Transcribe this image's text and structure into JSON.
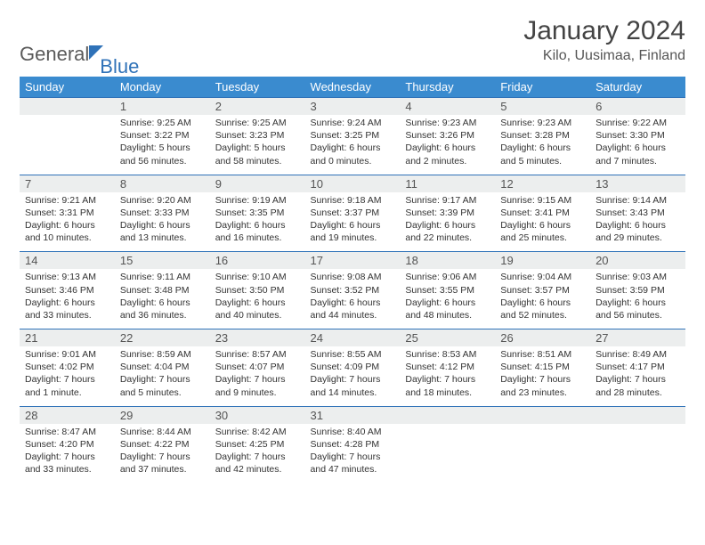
{
  "logo": {
    "word1": "General",
    "word2": "Blue"
  },
  "title": "January 2024",
  "location": "Kilo, Uusimaa, Finland",
  "weekdays": [
    "Sunday",
    "Monday",
    "Tuesday",
    "Wednesday",
    "Thursday",
    "Friday",
    "Saturday"
  ],
  "colors": {
    "header_bg": "#3a8bcf",
    "header_text": "#ffffff",
    "grid_rule": "#2f72b8",
    "daynum_bg": "#eceeee",
    "text": "#333333"
  },
  "weeks": [
    {
      "nums": [
        "",
        "1",
        "2",
        "3",
        "4",
        "5",
        "6"
      ],
      "cells": [
        {
          "sunrise": "",
          "sunset": "",
          "daylight": ""
        },
        {
          "sunrise": "Sunrise: 9:25 AM",
          "sunset": "Sunset: 3:22 PM",
          "daylight": "Daylight: 5 hours and 56 minutes."
        },
        {
          "sunrise": "Sunrise: 9:25 AM",
          "sunset": "Sunset: 3:23 PM",
          "daylight": "Daylight: 5 hours and 58 minutes."
        },
        {
          "sunrise": "Sunrise: 9:24 AM",
          "sunset": "Sunset: 3:25 PM",
          "daylight": "Daylight: 6 hours and 0 minutes."
        },
        {
          "sunrise": "Sunrise: 9:23 AM",
          "sunset": "Sunset: 3:26 PM",
          "daylight": "Daylight: 6 hours and 2 minutes."
        },
        {
          "sunrise": "Sunrise: 9:23 AM",
          "sunset": "Sunset: 3:28 PM",
          "daylight": "Daylight: 6 hours and 5 minutes."
        },
        {
          "sunrise": "Sunrise: 9:22 AM",
          "sunset": "Sunset: 3:30 PM",
          "daylight": "Daylight: 6 hours and 7 minutes."
        }
      ]
    },
    {
      "nums": [
        "7",
        "8",
        "9",
        "10",
        "11",
        "12",
        "13"
      ],
      "cells": [
        {
          "sunrise": "Sunrise: 9:21 AM",
          "sunset": "Sunset: 3:31 PM",
          "daylight": "Daylight: 6 hours and 10 minutes."
        },
        {
          "sunrise": "Sunrise: 9:20 AM",
          "sunset": "Sunset: 3:33 PM",
          "daylight": "Daylight: 6 hours and 13 minutes."
        },
        {
          "sunrise": "Sunrise: 9:19 AM",
          "sunset": "Sunset: 3:35 PM",
          "daylight": "Daylight: 6 hours and 16 minutes."
        },
        {
          "sunrise": "Sunrise: 9:18 AM",
          "sunset": "Sunset: 3:37 PM",
          "daylight": "Daylight: 6 hours and 19 minutes."
        },
        {
          "sunrise": "Sunrise: 9:17 AM",
          "sunset": "Sunset: 3:39 PM",
          "daylight": "Daylight: 6 hours and 22 minutes."
        },
        {
          "sunrise": "Sunrise: 9:15 AM",
          "sunset": "Sunset: 3:41 PM",
          "daylight": "Daylight: 6 hours and 25 minutes."
        },
        {
          "sunrise": "Sunrise: 9:14 AM",
          "sunset": "Sunset: 3:43 PM",
          "daylight": "Daylight: 6 hours and 29 minutes."
        }
      ]
    },
    {
      "nums": [
        "14",
        "15",
        "16",
        "17",
        "18",
        "19",
        "20"
      ],
      "cells": [
        {
          "sunrise": "Sunrise: 9:13 AM",
          "sunset": "Sunset: 3:46 PM",
          "daylight": "Daylight: 6 hours and 33 minutes."
        },
        {
          "sunrise": "Sunrise: 9:11 AM",
          "sunset": "Sunset: 3:48 PM",
          "daylight": "Daylight: 6 hours and 36 minutes."
        },
        {
          "sunrise": "Sunrise: 9:10 AM",
          "sunset": "Sunset: 3:50 PM",
          "daylight": "Daylight: 6 hours and 40 minutes."
        },
        {
          "sunrise": "Sunrise: 9:08 AM",
          "sunset": "Sunset: 3:52 PM",
          "daylight": "Daylight: 6 hours and 44 minutes."
        },
        {
          "sunrise": "Sunrise: 9:06 AM",
          "sunset": "Sunset: 3:55 PM",
          "daylight": "Daylight: 6 hours and 48 minutes."
        },
        {
          "sunrise": "Sunrise: 9:04 AM",
          "sunset": "Sunset: 3:57 PM",
          "daylight": "Daylight: 6 hours and 52 minutes."
        },
        {
          "sunrise": "Sunrise: 9:03 AM",
          "sunset": "Sunset: 3:59 PM",
          "daylight": "Daylight: 6 hours and 56 minutes."
        }
      ]
    },
    {
      "nums": [
        "21",
        "22",
        "23",
        "24",
        "25",
        "26",
        "27"
      ],
      "cells": [
        {
          "sunrise": "Sunrise: 9:01 AM",
          "sunset": "Sunset: 4:02 PM",
          "daylight": "Daylight: 7 hours and 1 minute."
        },
        {
          "sunrise": "Sunrise: 8:59 AM",
          "sunset": "Sunset: 4:04 PM",
          "daylight": "Daylight: 7 hours and 5 minutes."
        },
        {
          "sunrise": "Sunrise: 8:57 AM",
          "sunset": "Sunset: 4:07 PM",
          "daylight": "Daylight: 7 hours and 9 minutes."
        },
        {
          "sunrise": "Sunrise: 8:55 AM",
          "sunset": "Sunset: 4:09 PM",
          "daylight": "Daylight: 7 hours and 14 minutes."
        },
        {
          "sunrise": "Sunrise: 8:53 AM",
          "sunset": "Sunset: 4:12 PM",
          "daylight": "Daylight: 7 hours and 18 minutes."
        },
        {
          "sunrise": "Sunrise: 8:51 AM",
          "sunset": "Sunset: 4:15 PM",
          "daylight": "Daylight: 7 hours and 23 minutes."
        },
        {
          "sunrise": "Sunrise: 8:49 AM",
          "sunset": "Sunset: 4:17 PM",
          "daylight": "Daylight: 7 hours and 28 minutes."
        }
      ]
    },
    {
      "nums": [
        "28",
        "29",
        "30",
        "31",
        "",
        "",
        ""
      ],
      "cells": [
        {
          "sunrise": "Sunrise: 8:47 AM",
          "sunset": "Sunset: 4:20 PM",
          "daylight": "Daylight: 7 hours and 33 minutes."
        },
        {
          "sunrise": "Sunrise: 8:44 AM",
          "sunset": "Sunset: 4:22 PM",
          "daylight": "Daylight: 7 hours and 37 minutes."
        },
        {
          "sunrise": "Sunrise: 8:42 AM",
          "sunset": "Sunset: 4:25 PM",
          "daylight": "Daylight: 7 hours and 42 minutes."
        },
        {
          "sunrise": "Sunrise: 8:40 AM",
          "sunset": "Sunset: 4:28 PM",
          "daylight": "Daylight: 7 hours and 47 minutes."
        },
        {
          "sunrise": "",
          "sunset": "",
          "daylight": ""
        },
        {
          "sunrise": "",
          "sunset": "",
          "daylight": ""
        },
        {
          "sunrise": "",
          "sunset": "",
          "daylight": ""
        }
      ]
    }
  ]
}
